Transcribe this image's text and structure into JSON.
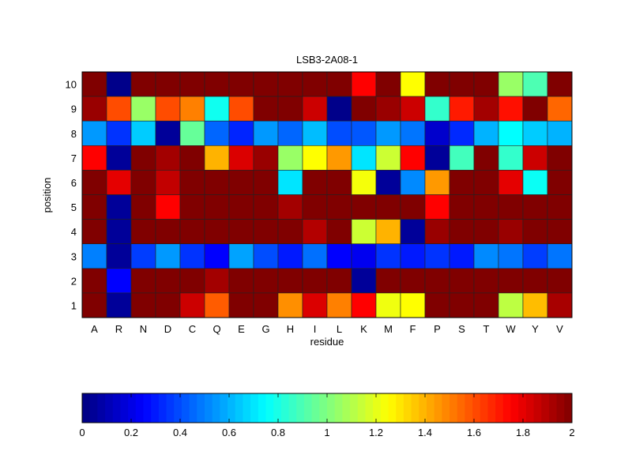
{
  "chart_data": {
    "type": "heatmap",
    "title": "LSB3-2A08-1",
    "xlabel": "residue",
    "ylabel": "position",
    "x_categories": [
      "A",
      "R",
      "N",
      "D",
      "C",
      "Q",
      "E",
      "G",
      "H",
      "I",
      "L",
      "K",
      "M",
      "F",
      "P",
      "S",
      "T",
      "W",
      "Y",
      "V"
    ],
    "y_categories": [
      "10",
      "9",
      "8",
      "7",
      "6",
      "5",
      "4",
      "3",
      "2",
      "1"
    ],
    "values": [
      [
        2,
        0.02,
        2,
        2,
        2,
        2,
        2,
        2,
        2,
        2,
        2,
        1.75,
        2,
        1.25,
        2,
        2,
        2,
        1.05,
        0.9,
        2
      ],
      [
        1.95,
        1.6,
        1.05,
        1.6,
        1.5,
        0.78,
        1.6,
        2,
        2,
        1.85,
        0.02,
        2,
        1.95,
        1.85,
        0.85,
        1.7,
        1.93,
        1.72,
        2,
        1.55
      ],
      [
        0.55,
        0.35,
        0.65,
        0.05,
        0.95,
        0.45,
        0.32,
        0.55,
        0.45,
        0.62,
        0.4,
        0.42,
        0.55,
        0.48,
        0.15,
        0.33,
        0.6,
        0.75,
        0.65,
        0.6
      ],
      [
        1.75,
        0.05,
        2,
        1.93,
        2,
        1.4,
        1.82,
        1.95,
        1.05,
        1.25,
        1.45,
        0.7,
        1.15,
        1.75,
        0.05,
        0.88,
        2,
        0.85,
        1.85,
        2
      ],
      [
        2,
        1.8,
        2,
        1.87,
        2,
        2,
        2,
        2,
        0.7,
        2,
        2,
        1.23,
        0.05,
        0.52,
        1.45,
        2,
        2,
        1.8,
        0.77,
        2
      ],
      [
        2,
        0.05,
        2,
        1.75,
        2,
        2,
        2,
        2,
        1.93,
        2,
        2,
        2,
        2,
        2,
        1.75,
        2,
        2,
        2,
        2,
        2
      ],
      [
        2,
        0.05,
        2,
        2,
        2,
        2,
        2,
        2,
        2,
        1.9,
        2,
        1.15,
        1.4,
        0.05,
        1.95,
        2,
        2,
        1.95,
        2,
        2
      ],
      [
        0.5,
        0.05,
        0.37,
        0.55,
        0.35,
        0.25,
        0.57,
        0.4,
        0.3,
        0.47,
        0.25,
        0.22,
        0.35,
        0.3,
        0.35,
        0.3,
        0.52,
        0.48,
        0.37,
        0.48
      ],
      [
        2,
        0.25,
        2,
        2,
        2,
        1.93,
        2,
        2,
        2,
        2,
        2,
        0.05,
        2,
        2,
        2,
        2,
        2,
        2,
        2,
        2
      ],
      [
        2,
        0.05,
        2,
        2,
        1.85,
        1.57,
        2,
        2,
        1.47,
        1.82,
        1.5,
        1.75,
        1.22,
        1.25,
        2,
        2,
        2,
        1.12,
        1.38,
        1.92
      ]
    ],
    "colormap": "jet",
    "clim": [
      0,
      2
    ],
    "colorbar": {
      "placement": "bottom",
      "ticks": [
        "0",
        "0.2",
        "0.4",
        "0.6",
        "0.8",
        "1",
        "1.2",
        "1.4",
        "1.6",
        "1.8",
        "2"
      ]
    }
  }
}
